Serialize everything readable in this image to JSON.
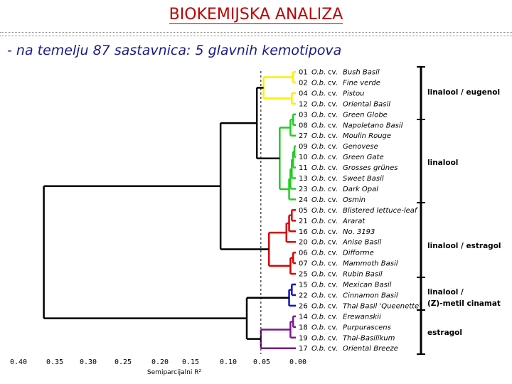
{
  "header": {
    "title": "BIOKEMIJSKA ANALIZA",
    "subtitle": "- na temelju 87 sastavnica: 5 glavnih kemotipova"
  },
  "axis": {
    "ticks": [
      "0.40",
      "0.35",
      "0.30",
      "0.25",
      "0.20",
      "0.15",
      "0.10",
      "0.05",
      "0.00"
    ],
    "title": "Semiparcijalni R²"
  },
  "leaves": [
    {
      "num": "01",
      "sp": "O.b.",
      "cv": "cv.",
      "name": "Bush Basil"
    },
    {
      "num": "02",
      "sp": "O.b.",
      "cv": "cv.",
      "name": "Fine verde"
    },
    {
      "num": "04",
      "sp": "O.b.",
      "cv": "cv.",
      "name": "Pistou"
    },
    {
      "num": "12",
      "sp": "O.b.",
      "cv": "cv.",
      "name": "Oriental Basil"
    },
    {
      "num": "03",
      "sp": "O.b.",
      "cv": "cv.",
      "name": "Green Globe"
    },
    {
      "num": "08",
      "sp": "O.b.",
      "cv": "cv.",
      "name": "Napoletano Basil"
    },
    {
      "num": "27",
      "sp": "O.b.",
      "cv": "cv.",
      "name": "Moulin Rouge"
    },
    {
      "num": "09",
      "sp": "O.b.",
      "cv": "cv.",
      "name": "Genovese"
    },
    {
      "num": "10",
      "sp": "O.b.",
      "cv": "cv.",
      "name": "Green Gate"
    },
    {
      "num": "11",
      "sp": "O.b.",
      "cv": "cv.",
      "name": "Grosses grünes"
    },
    {
      "num": "13",
      "sp": "O.b.",
      "cv": "cv.",
      "name": "Sweet Basil"
    },
    {
      "num": "23",
      "sp": "O.b.",
      "cv": "cv.",
      "name": "Dark Opal"
    },
    {
      "num": "24",
      "sp": "O.b.",
      "cv": "cv.",
      "name": "Osmin"
    },
    {
      "num": "05",
      "sp": "O.b.",
      "cv": "cv.",
      "name": "Blistered lettuce-leaf"
    },
    {
      "num": "21",
      "sp": "O.b.",
      "cv": "cv.",
      "name": "Ararat"
    },
    {
      "num": "16",
      "sp": "O.b.",
      "cv": "cv.",
      "name": "No. 3193"
    },
    {
      "num": "20",
      "sp": "O.b.",
      "cv": "cv.",
      "name": "Anise Basil"
    },
    {
      "num": "06",
      "sp": "O.b.",
      "cv": "cv.",
      "name": "Difforme"
    },
    {
      "num": "07",
      "sp": "O.b.",
      "cv": "cv.",
      "name": "Mammoth Basil"
    },
    {
      "num": "25",
      "sp": "O.b.",
      "cv": "cv.",
      "name": "Rubin Basil"
    },
    {
      "num": "15",
      "sp": "O.b.",
      "cv": "cv.",
      "name": "Mexican Basil"
    },
    {
      "num": "22",
      "sp": "O.b.",
      "cv": "cv.",
      "name": "Cinnamon Basil"
    },
    {
      "num": "26",
      "sp": "O.b.",
      "cv": "cv.",
      "name": "Thai Basil 'Queenette'"
    },
    {
      "num": "14",
      "sp": "O.b.",
      "cv": "cv.",
      "name": "Erewanskii"
    },
    {
      "num": "18",
      "sp": "O.b.",
      "cv": "cv.",
      "name": "Purpurascens"
    },
    {
      "num": "19",
      "sp": "O.b.",
      "cv": "cv.",
      "name": "Thai-Basilikum"
    },
    {
      "num": "17",
      "sp": "O.b.",
      "cv": "cv.",
      "name": "Oriental Breeze"
    }
  ],
  "clusters": [
    {
      "color": "#ffee00",
      "from": 0,
      "to": 3,
      "label": "linalool / eugenol"
    },
    {
      "color": "#22cc22",
      "from": 4,
      "to": 12,
      "label": "linalool"
    },
    {
      "color": "#dd0000",
      "from": 13,
      "to": 19,
      "label": "linalool / estragol"
    },
    {
      "color": "#1010cc",
      "from": 20,
      "to": 22,
      "label": "linalool /",
      "label2": "(Z)-metil cinamat"
    },
    {
      "color": "#7a1a8a",
      "from": 23,
      "to": 26,
      "label": "estragol"
    }
  ]
}
